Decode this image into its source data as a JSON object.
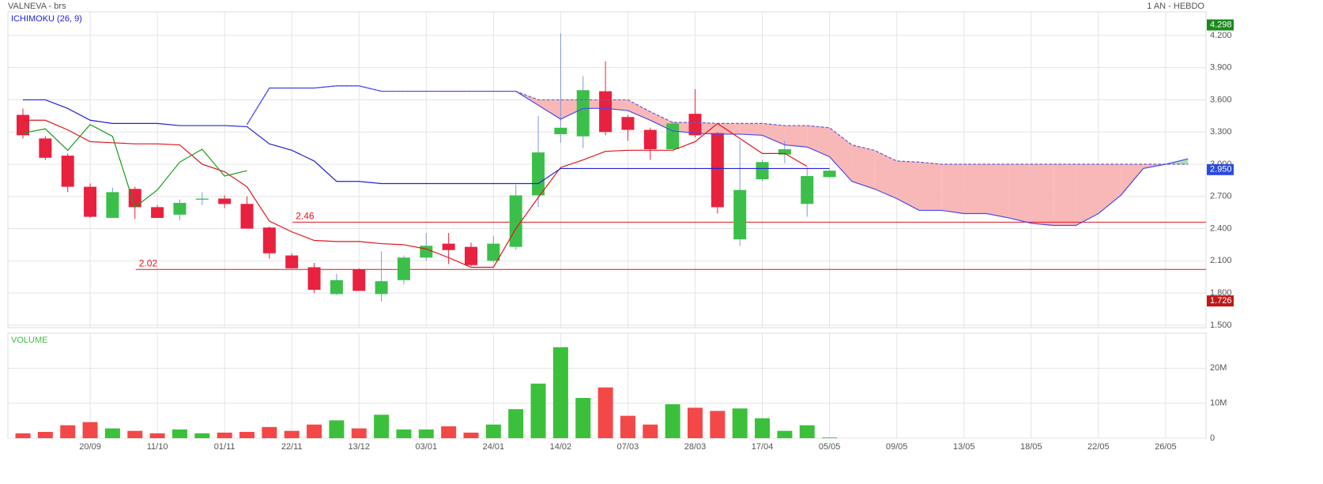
{
  "chart_data": [
    {
      "type": "candlestick",
      "title": "VALNEVA - brs",
      "period": "1 AN - HEBDO",
      "indicator": "ICHIMOKU (26, 9)",
      "up_color": "#3cbf4a",
      "down_color": "#e8213f",
      "ylim": [
        1.477,
        4.42
      ],
      "yticks": [
        {
          "value": 4.2,
          "label": "4.200"
        },
        {
          "value": 3.9,
          "label": "3.900"
        },
        {
          "value": 3.6,
          "label": "3.600"
        },
        {
          "value": 3.3,
          "label": "3.300"
        },
        {
          "value": 3.0,
          "label": "3.000"
        },
        {
          "value": 2.7,
          "label": "2.700"
        },
        {
          "value": 2.4,
          "label": "2.400"
        },
        {
          "value": 2.1,
          "label": "2.100"
        },
        {
          "value": 1.8,
          "label": "1.800"
        },
        {
          "value": 1.5,
          "label": "1.500"
        }
      ],
      "grid": true,
      "open": [
        3.46,
        3.24,
        3.08,
        2.79,
        2.5,
        2.77,
        2.6,
        2.53,
        2.67,
        2.68,
        2.63,
        2.41,
        2.15,
        2.04,
        1.79,
        2.02,
        1.79,
        1.92,
        2.13,
        2.26,
        2.23,
        2.1,
        2.23,
        2.71,
        3.28,
        3.26,
        3.68,
        3.44,
        3.32,
        3.14,
        3.47,
        3.29,
        2.3,
        2.86,
        3.09,
        2.63,
        2.88,
        null,
        null,
        null,
        null,
        null,
        null,
        null,
        null,
        null,
        null,
        null,
        null,
        null,
        null,
        null,
        null
      ],
      "high": [
        3.52,
        3.26,
        3.1,
        2.82,
        2.78,
        2.79,
        2.62,
        2.67,
        2.74,
        2.71,
        2.7,
        2.42,
        2.17,
        2.08,
        1.98,
        2.03,
        2.19,
        2.15,
        2.36,
        2.36,
        2.27,
        2.33,
        2.81,
        3.45,
        4.22,
        3.82,
        3.96,
        3.46,
        3.34,
        3.4,
        3.7,
        3.3,
        3.22,
        3.04,
        3.22,
        2.97,
        2.95,
        null,
        null,
        null,
        null,
        null,
        null,
        null,
        null,
        null,
        null,
        null,
        null,
        null,
        null,
        null,
        null
      ],
      "low": [
        3.24,
        3.04,
        2.74,
        2.5,
        2.5,
        2.49,
        2.5,
        2.48,
        2.62,
        2.59,
        2.4,
        2.12,
        2.03,
        1.8,
        1.78,
        1.82,
        1.72,
        1.88,
        2.1,
        2.07,
        2.05,
        2.08,
        2.2,
        2.6,
        3.2,
        3.15,
        3.27,
        3.22,
        3.04,
        3.14,
        3.25,
        2.54,
        2.24,
        2.84,
        3.01,
        2.51,
        2.88,
        null,
        null,
        null,
        null,
        null,
        null,
        null,
        null,
        null,
        null,
        null,
        null,
        null,
        null,
        null,
        null
      ],
      "close": [
        3.27,
        3.06,
        2.79,
        2.51,
        2.74,
        2.6,
        2.5,
        2.64,
        2.68,
        2.63,
        2.4,
        2.17,
        2.03,
        1.83,
        1.92,
        1.82,
        1.91,
        2.13,
        2.24,
        2.2,
        2.06,
        2.26,
        2.71,
        3.11,
        3.34,
        3.69,
        3.3,
        3.32,
        3.14,
        3.38,
        3.27,
        2.6,
        2.76,
        3.02,
        3.14,
        2.89,
        2.94,
        null,
        null,
        null,
        null,
        null,
        null,
        null,
        null,
        null,
        null,
        null,
        null,
        null,
        null,
        null,
        null
      ],
      "lines": [
        {
          "color": "#6a5acd",
          "dash": true,
          "values": [
            null,
            null,
            null,
            null,
            null,
            null,
            null,
            null,
            null,
            null,
            3.37,
            3.71,
            3.71,
            3.71,
            3.73,
            3.73,
            3.68,
            3.68,
            3.68,
            3.68,
            3.68,
            3.68,
            3.68,
            3.6,
            3.6,
            3.6,
            3.6,
            3.6,
            3.49,
            3.39,
            3.39,
            3.38,
            3.38,
            3.38,
            3.36,
            3.36,
            3.34,
            3.18,
            3.13,
            3.03,
            3.02,
            3.0,
            3.0,
            3.0,
            3.0,
            3.0,
            3.0,
            3.0,
            3.0,
            3.0,
            3.0,
            3.0,
            3.0
          ]
        },
        {
          "color": "#4a4af0",
          "dash": false,
          "values": [
            null,
            null,
            null,
            null,
            null,
            null,
            null,
            null,
            null,
            null,
            3.37,
            3.71,
            3.71,
            3.71,
            3.73,
            3.73,
            3.68,
            3.68,
            3.68,
            3.68,
            3.68,
            3.68,
            3.68,
            3.55,
            3.42,
            3.52,
            3.52,
            3.5,
            3.41,
            3.31,
            3.29,
            3.28,
            3.28,
            3.27,
            3.18,
            3.16,
            3.07,
            2.84,
            2.77,
            2.68,
            2.57,
            2.57,
            2.54,
            2.54,
            2.5,
            2.45,
            2.43,
            2.43,
            2.54,
            2.71,
            2.96,
            3.0,
            3.05
          ]
        },
        {
          "color": "#e0141e",
          "dash": false,
          "values": [
            3.41,
            3.41,
            3.32,
            3.21,
            3.2,
            3.19,
            3.19,
            3.18,
            3.0,
            2.93,
            2.79,
            2.47,
            2.37,
            2.29,
            2.28,
            2.28,
            2.26,
            2.25,
            2.21,
            2.13,
            2.04,
            2.04,
            2.4,
            2.69,
            2.97,
            3.04,
            3.12,
            3.13,
            3.13,
            3.13,
            3.21,
            3.38,
            3.24,
            3.1,
            3.1,
            2.98,
            null,
            null,
            null,
            null,
            null,
            null,
            null,
            null,
            null,
            null,
            null,
            null,
            null,
            null,
            null,
            null,
            null
          ]
        },
        {
          "color": "#2020d8",
          "dash": false,
          "values": [
            3.6,
            3.6,
            3.52,
            3.41,
            3.38,
            3.38,
            3.38,
            3.36,
            3.36,
            3.36,
            3.35,
            3.19,
            3.13,
            3.03,
            2.84,
            2.84,
            2.82,
            2.82,
            2.82,
            2.82,
            2.82,
            2.82,
            2.82,
            2.82,
            2.96,
            2.96,
            2.96,
            2.96,
            2.96,
            2.96,
            2.96,
            2.96,
            2.96,
            2.96,
            2.96,
            2.96,
            2.96,
            null,
            null,
            null,
            null,
            null,
            null,
            null,
            null,
            null,
            null,
            null,
            null,
            null,
            null,
            null,
            null
          ]
        },
        {
          "color": "#1a9a1a",
          "dash": false,
          "values": [
            3.29,
            3.33,
            3.13,
            3.37,
            3.26,
            2.6,
            2.76,
            3.02,
            3.14,
            2.89,
            2.94,
            null,
            null,
            null,
            null,
            null,
            null,
            null,
            null,
            null,
            null,
            null,
            null,
            null,
            null,
            null,
            null,
            null,
            null,
            null,
            null,
            null,
            null,
            null,
            null,
            null,
            null,
            null,
            null,
            null,
            null,
            null,
            null,
            null,
            null,
            null,
            null,
            null,
            null,
            null,
            null,
            null,
            null
          ]
        }
      ],
      "cloud_up_color": "#a8dca8",
      "cloud_down_color": "#f8b0b0",
      "level_color": "#e0141e",
      "levels": [
        2.46,
        2.02
      ],
      "price_tags": [
        {
          "value": 4.298,
          "label": "4.298",
          "color": "#1a8a1a"
        },
        {
          "value": 2.95,
          "label": "2.950",
          "color": "#2a4ae0"
        },
        {
          "value": 1.726,
          "label": "1.726",
          "color": "#c01818"
        }
      ]
    },
    {
      "type": "bar",
      "title": "VOLUME",
      "up_color": "#3cc03c",
      "down_color": "#f44848",
      "categories": [
        null,
        null,
        null,
        "20/09",
        null,
        null,
        "11/10",
        null,
        null,
        "01/11",
        null,
        null,
        "22/11",
        null,
        null,
        "13/12",
        null,
        null,
        "03/01",
        null,
        null,
        "24/01",
        null,
        null,
        "14/02",
        null,
        null,
        "07/03",
        null,
        null,
        "28/03",
        null,
        null,
        "17/04",
        null,
        null,
        "05/05",
        null,
        null,
        "09/05",
        null,
        null,
        "13/05",
        null,
        null,
        "18/05",
        null,
        null,
        "22/05",
        null,
        null,
        "26/05",
        null
      ],
      "values": [
        1400000,
        1800000,
        3700000,
        4600000,
        2800000,
        2100000,
        1400000,
        2500000,
        1400000,
        1600000,
        1800000,
        3200000,
        2100000,
        3900000,
        5100000,
        2800000,
        6700000,
        2500000,
        2500000,
        3400000,
        1600000,
        3900000,
        8300000,
        15600000,
        26000000,
        11500000,
        14500000,
        6400000,
        3900000,
        9700000,
        8700000,
        7800000,
        8500000,
        5700000,
        2100000,
        3700000,
        200000,
        null,
        null,
        null,
        null,
        null,
        null,
        null,
        null,
        null,
        null,
        null,
        null,
        null,
        null,
        null,
        null
      ],
      "ylim": [
        0,
        30000000
      ],
      "yticks": [
        0,
        {
          "value": 10000000,
          "label": "10M"
        },
        {
          "value": 20000000,
          "label": "20M"
        }
      ],
      "grid": true
    }
  ]
}
